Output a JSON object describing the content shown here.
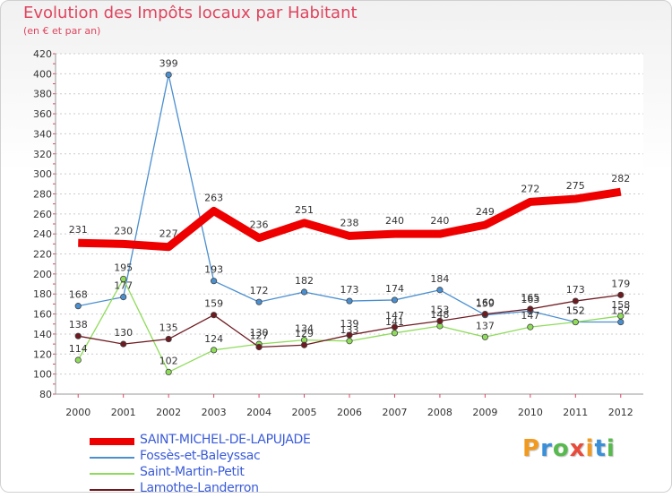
{
  "header": {
    "title": "Evolution des Impôts locaux par Habitant",
    "subtitle": "(en € et par an)"
  },
  "brand": {
    "letters": [
      "P",
      "r",
      "o",
      "x",
      "i",
      "t",
      "i"
    ],
    "colors": [
      "#f29a1f",
      "#3a8fd9",
      "#58b94e",
      "#e84b3c",
      "#f29a1f",
      "#3a8fd9",
      "#58b94e"
    ]
  },
  "chart_data": {
    "type": "line",
    "x": [
      "2000",
      "2001",
      "2002",
      "2003",
      "2004",
      "2005",
      "2006",
      "2007",
      "2008",
      "2009",
      "2010",
      "2011",
      "2012"
    ],
    "ylim": [
      80,
      420
    ],
    "yticks": [
      80,
      100,
      120,
      140,
      160,
      180,
      200,
      220,
      240,
      260,
      280,
      300,
      320,
      340,
      360,
      380,
      400,
      420
    ],
    "grid": "horizontal-dashed",
    "legend_position": "bottom-left",
    "series": [
      {
        "name": "Fossès-et-Baleyssac",
        "color": "#4a8fd0",
        "values": [
          168,
          177,
          399,
          193,
          172,
          182,
          173,
          174,
          184,
          159,
          163,
          152,
          152
        ]
      },
      {
        "name": "Saint-Martin-Petit",
        "color": "#8fdc5a",
        "values": [
          114,
          195,
          102,
          124,
          130,
          134,
          133,
          141,
          148,
          137,
          147,
          152,
          158
        ]
      },
      {
        "name": "Lamothe-Landerron",
        "color": "#6e1a20",
        "values": [
          138,
          130,
          135,
          159,
          127,
          129,
          139,
          147,
          153,
          160,
          165,
          173,
          179
        ]
      },
      {
        "name": "SAINT-MICHEL-DE-LAPUJADE",
        "color": "#ee0000",
        "values": [
          231,
          230,
          227,
          263,
          236,
          251,
          238,
          240,
          240,
          249,
          272,
          275,
          282
        ]
      }
    ],
    "legend_order": [
      3,
      0,
      1,
      2
    ]
  }
}
